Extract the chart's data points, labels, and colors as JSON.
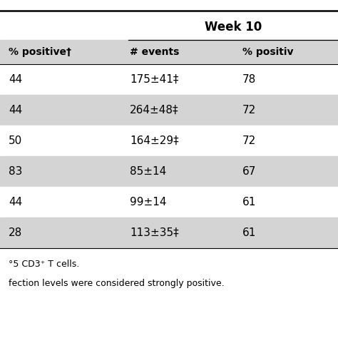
{
  "col1_header": "% positive†",
  "col2_header": "# events",
  "col3_header": "% positiv",
  "week_header": "Week 10",
  "rows": [
    {
      "col1": "44",
      "col2": "175±41‡",
      "col3": "78",
      "shaded": false
    },
    {
      "col1": "44",
      "col2": "264±48‡",
      "col3": "72",
      "shaded": true
    },
    {
      "col1": "50",
      "col2": "164±29‡",
      "col3": "72",
      "shaded": false
    },
    {
      "col1": "83",
      "col2": "85±14",
      "col3": "67",
      "shaded": true
    },
    {
      "col1": "44",
      "col2": "99±14",
      "col3": "61",
      "shaded": false
    },
    {
      "col1": "28",
      "col2": "113±35‡",
      "col3": "61",
      "shaded": true
    }
  ],
  "footnote1": "°5 CD3⁺ T cells.",
  "footnote2": "fection levels were considered strongly positive.",
  "shaded_color": "#d4d4d4",
  "white_color": "#ffffff",
  "top_line_color": "#000000"
}
